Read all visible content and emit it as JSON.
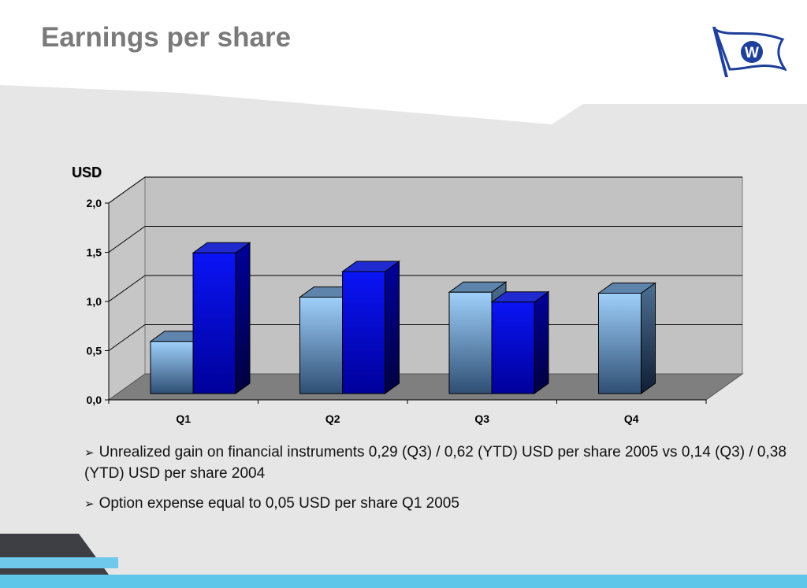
{
  "slide": {
    "title": "Earnings per share",
    "bullets": [
      "Unrealized gain on financial instruments 0,29 (Q3) / 0,62 (YTD) USD per share 2005 vs 0,14 (Q3) / 0,38 (YTD) USD per share 2004",
      "Option expense equal to 0,05 USD per share Q1 2005"
    ],
    "bullet_glyph": "➢"
  },
  "logo": {
    "letter": "W",
    "icon": "flag-logo-icon",
    "color": "#1e3f9a"
  },
  "colors": {
    "series_light": "#8ec4f5",
    "series_dark": "#0000d0",
    "accent_band": "#5fc6ea"
  },
  "chart_data": {
    "type": "bar",
    "title": "",
    "ylabel": "USD",
    "xlabel": "",
    "categories": [
      "Q1",
      "Q2",
      "Q3",
      "Q4"
    ],
    "ylim": [
      0,
      2.0
    ],
    "yticks": [
      "0,0",
      "0,5",
      "1,0",
      "1,5",
      "2,0"
    ],
    "grid": true,
    "legend": "none",
    "series": [
      {
        "values": [
          0.53,
          0.98,
          1.03,
          1.02
        ]
      },
      {
        "values": [
          1.43,
          1.24,
          0.93,
          null
        ]
      }
    ]
  }
}
